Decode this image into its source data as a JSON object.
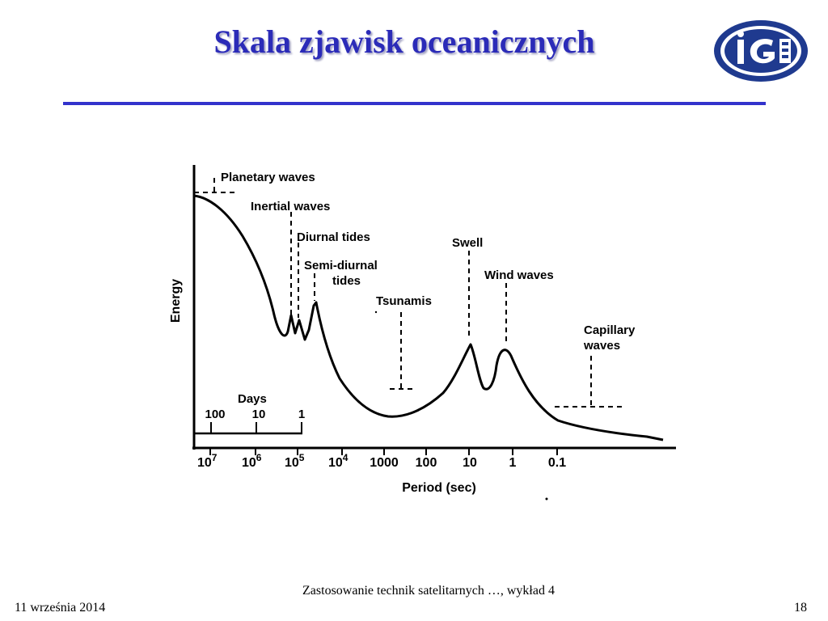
{
  "slide": {
    "title": "Skala zjawisk oceanicznych",
    "footer_center": "Zastosowanie technik satelitarnych …, wykład 4",
    "footer_date": "11 września 2014",
    "page_number": "18"
  },
  "logo": {
    "icon": "university-logo-icon",
    "text": "iG",
    "color": "#1f3a8f"
  },
  "diagram": {
    "y_axis_label": "Energy",
    "x_axis_label": "Period (sec)",
    "days_label": "Days",
    "days_ticks": [
      "100",
      "10",
      "1"
    ],
    "period_ticks": [
      "10",
      "10",
      "10",
      "10",
      "1000",
      "100",
      "10",
      "1",
      "0.1"
    ],
    "period_exponents": [
      "7",
      "6",
      "5",
      "4"
    ],
    "phenomena": {
      "planetary": "Planetary waves",
      "inertial": "Inertial waves",
      "diurnal": "Diurnal tides",
      "semidiurnal_1": "Semi-diurnal",
      "semidiurnal_2": "tides",
      "tsunamis": "Tsunamis",
      "swell": "Swell",
      "wind": "Wind waves",
      "capillary_1": "Capillary",
      "capillary_2": "waves"
    },
    "line_color": "#000000"
  }
}
